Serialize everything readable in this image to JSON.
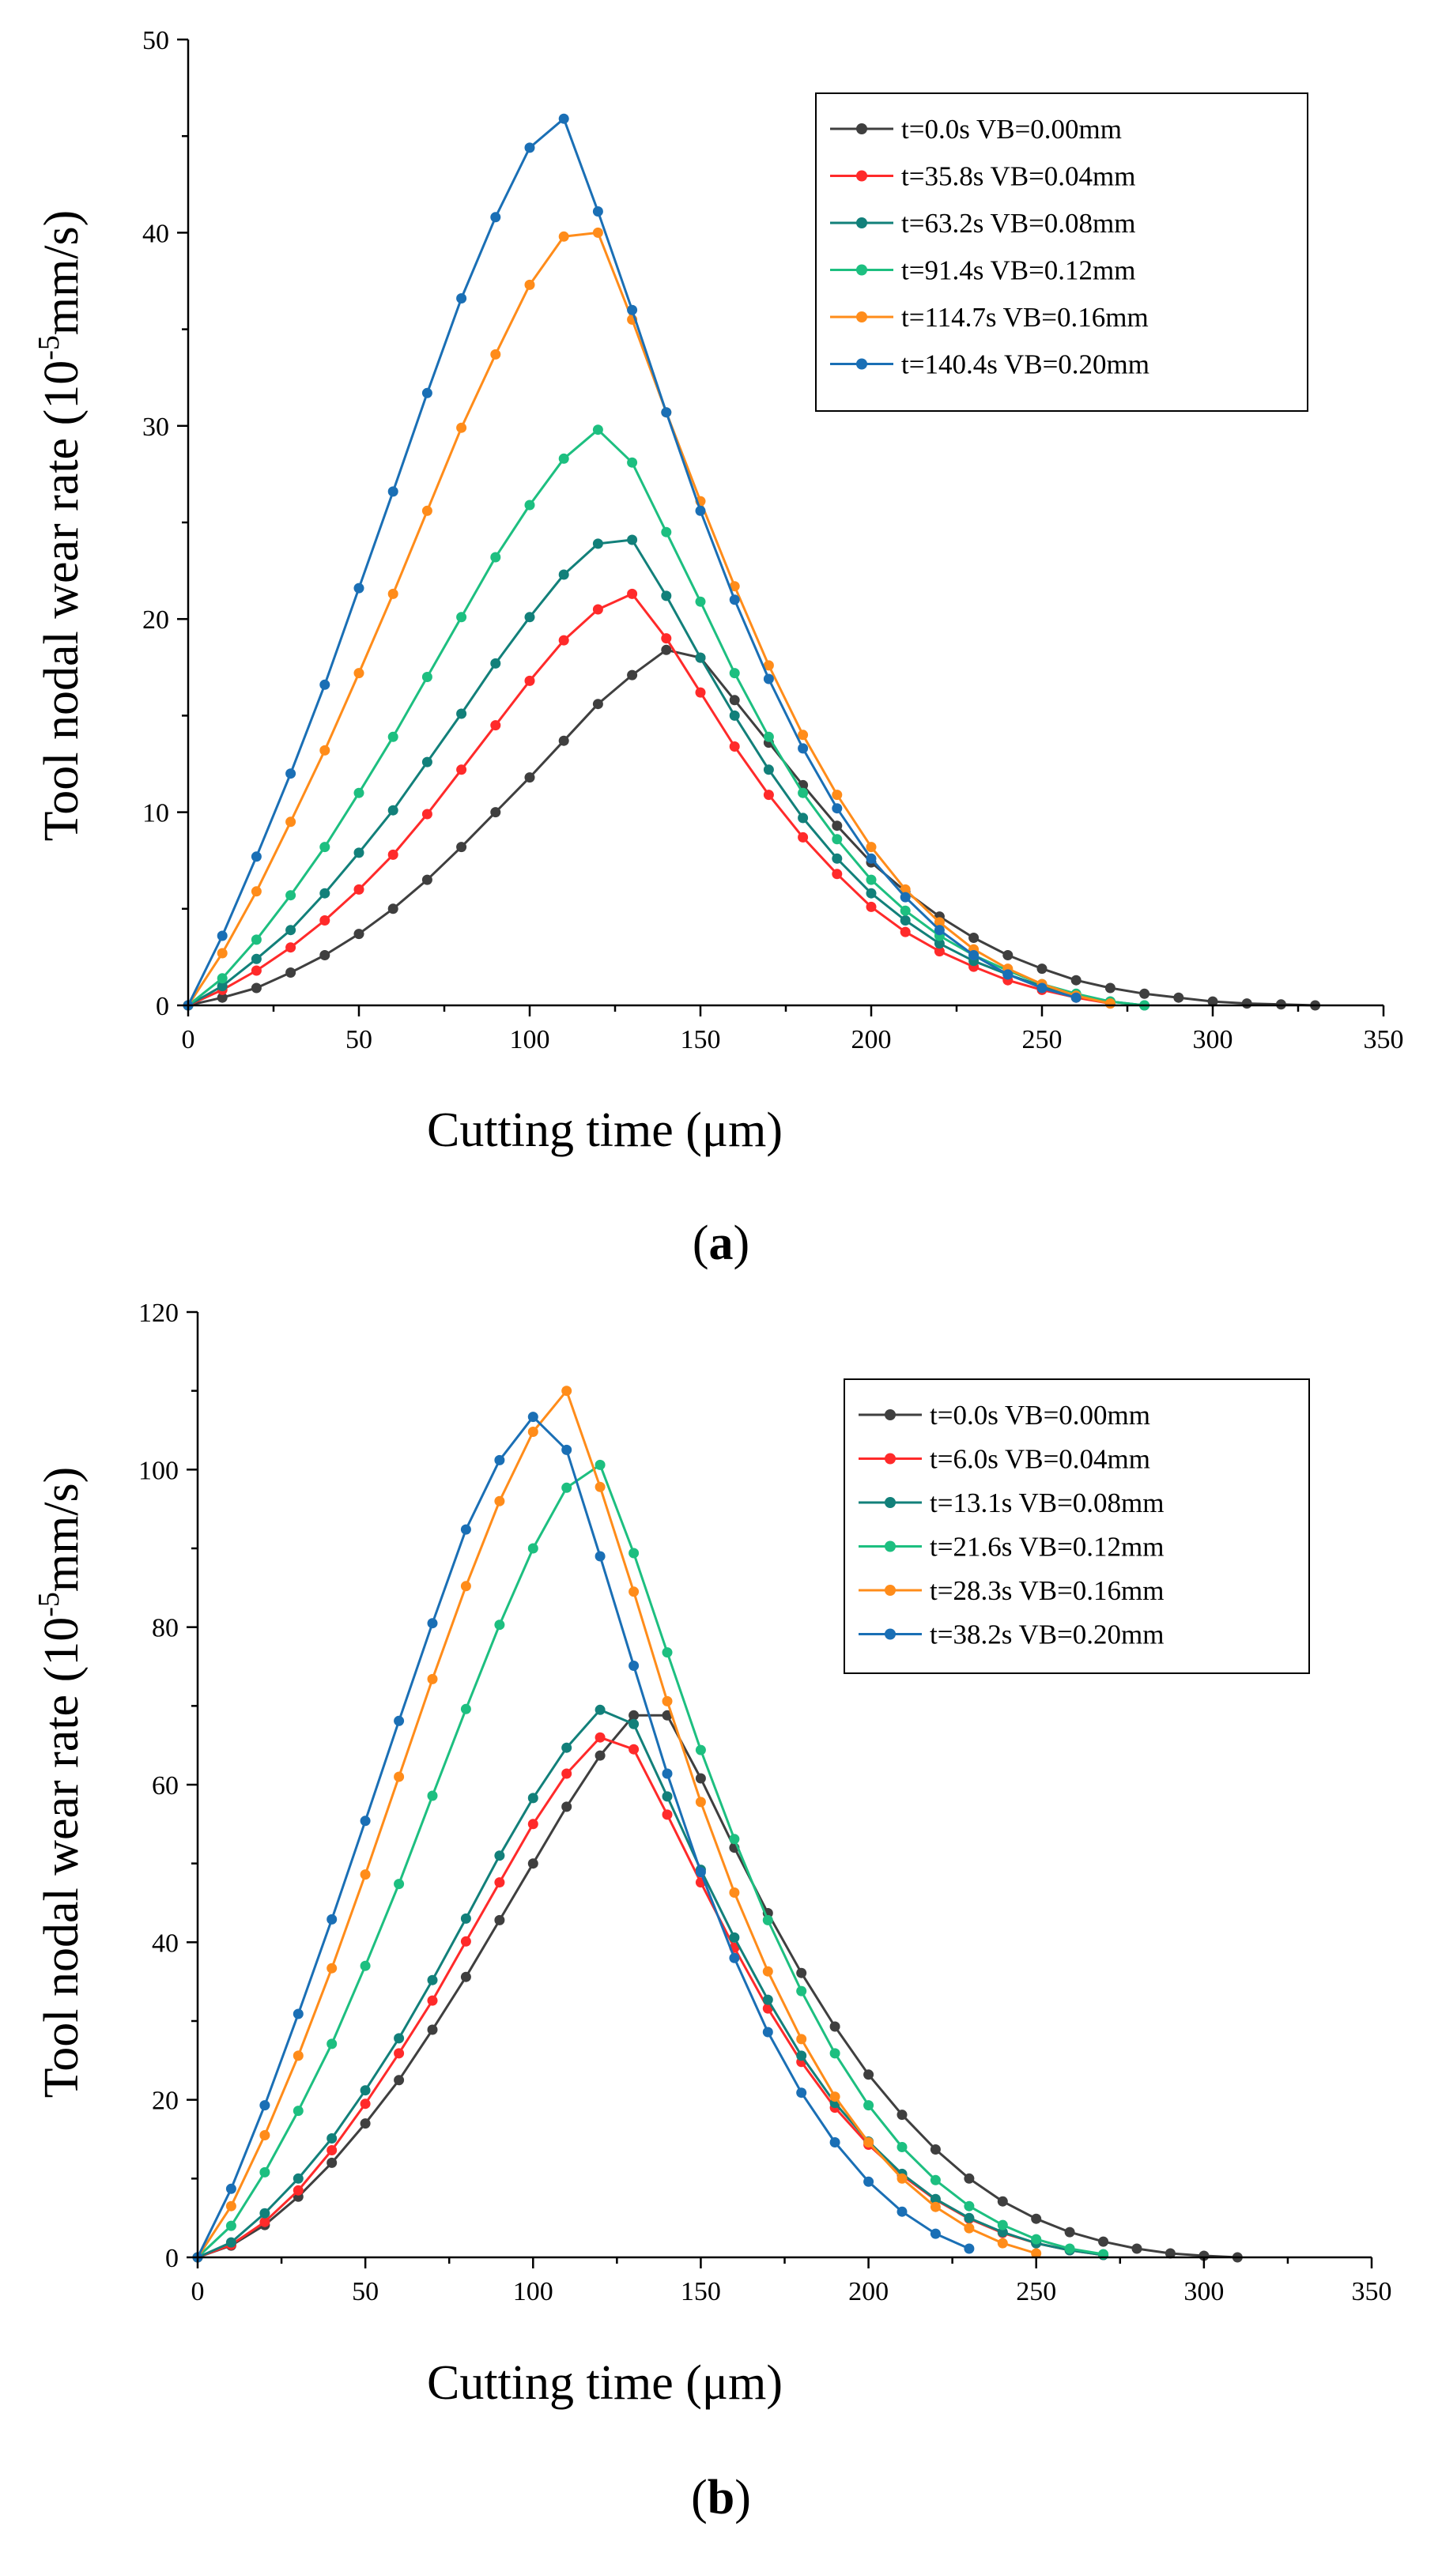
{
  "chart_data": [
    {
      "type": "line",
      "panel_label": "a",
      "title": "",
      "xlabel": "Cutting time (μm)",
      "ylabel_parts": [
        "Tool nodal wear rate (10",
        "-5",
        "mm/s)"
      ],
      "xlim": [
        0,
        350
      ],
      "ylim": [
        0,
        50
      ],
      "xticks": [
        0,
        50,
        100,
        150,
        200,
        250,
        300,
        350
      ],
      "yticks": [
        0,
        10,
        20,
        30,
        40,
        50
      ],
      "grid": false,
      "legend_position": "top-right",
      "series": [
        {
          "name": "t=0.0s VB=0.00mm",
          "color": "#3f3f3f",
          "x": [
            0,
            10,
            20,
            30,
            40,
            50,
            60,
            70,
            80,
            90,
            100,
            110,
            120,
            130,
            140,
            150,
            160,
            170,
            180,
            190,
            200,
            210,
            220,
            230,
            240,
            250,
            260,
            270,
            280,
            290,
            300,
            310,
            320,
            330
          ],
          "y": [
            0,
            0.4,
            0.9,
            1.7,
            2.6,
            3.7,
            5.0,
            6.5,
            8.2,
            10.0,
            11.8,
            13.7,
            15.6,
            17.1,
            18.4,
            18.0,
            15.8,
            13.6,
            11.4,
            9.3,
            7.4,
            5.9,
            4.6,
            3.5,
            2.6,
            1.9,
            1.3,
            0.9,
            0.6,
            0.4,
            0.2,
            0.1,
            0.05,
            0
          ]
        },
        {
          "name": "t=35.8s VB=0.04mm",
          "color": "#ff2a2a",
          "x": [
            0,
            10,
            20,
            30,
            40,
            50,
            60,
            70,
            80,
            90,
            100,
            110,
            120,
            130,
            140,
            150,
            160,
            170,
            180,
            190,
            200,
            210,
            220,
            230,
            240,
            250,
            260,
            270
          ],
          "y": [
            0,
            0.8,
            1.8,
            3.0,
            4.4,
            6.0,
            7.8,
            9.9,
            12.2,
            14.5,
            16.8,
            18.9,
            20.5,
            21.3,
            19.0,
            16.2,
            13.4,
            10.9,
            8.7,
            6.8,
            5.1,
            3.8,
            2.8,
            2.0,
            1.3,
            0.8,
            0.4,
            0.1
          ]
        },
        {
          "name": "t=63.2s VB=0.08mm",
          "color": "#12807a",
          "x": [
            0,
            10,
            20,
            30,
            40,
            50,
            60,
            70,
            80,
            90,
            100,
            110,
            120,
            130,
            140,
            150,
            160,
            170,
            180,
            190,
            200,
            210,
            220,
            230,
            240,
            250,
            260,
            270,
            280
          ],
          "y": [
            0,
            1.0,
            2.4,
            3.9,
            5.8,
            7.9,
            10.1,
            12.6,
            15.1,
            17.7,
            20.1,
            22.3,
            23.9,
            24.1,
            21.2,
            18.0,
            15.0,
            12.2,
            9.7,
            7.6,
            5.8,
            4.4,
            3.2,
            2.3,
            1.6,
            1.0,
            0.5,
            0.2,
            0
          ]
        },
        {
          "name": "t=91.4s VB=0.12mm",
          "color": "#1dbf80",
          "x": [
            0,
            10,
            20,
            30,
            40,
            50,
            60,
            70,
            80,
            90,
            100,
            110,
            120,
            130,
            140,
            150,
            160,
            170,
            180,
            190,
            200,
            210,
            220,
            230,
            240,
            250,
            260,
            270,
            280
          ],
          "y": [
            0,
            1.4,
            3.4,
            5.7,
            8.2,
            11.0,
            13.9,
            17.0,
            20.1,
            23.2,
            25.9,
            28.3,
            29.8,
            28.1,
            24.5,
            20.9,
            17.2,
            13.9,
            11.0,
            8.6,
            6.5,
            4.9,
            3.6,
            2.6,
            1.8,
            1.1,
            0.6,
            0.2,
            0
          ]
        },
        {
          "name": "t=114.7s VB=0.16mm",
          "color": "#ff8c1a",
          "x": [
            0,
            10,
            20,
            30,
            40,
            50,
            60,
            70,
            80,
            90,
            100,
            110,
            120,
            130,
            140,
            150,
            160,
            170,
            180,
            190,
            200,
            210,
            220,
            230,
            240,
            250,
            260,
            270
          ],
          "y": [
            0,
            2.7,
            5.9,
            9.5,
            13.2,
            17.2,
            21.3,
            25.6,
            29.9,
            33.7,
            37.3,
            39.8,
            40.0,
            35.5,
            30.7,
            26.1,
            21.7,
            17.6,
            14.0,
            10.9,
            8.2,
            6.0,
            4.3,
            2.9,
            1.9,
            1.1,
            0.5,
            0.1
          ]
        },
        {
          "name": "t=140.4s VB=0.20mm",
          "color": "#1a6fb5",
          "x": [
            0,
            10,
            20,
            30,
            40,
            50,
            60,
            70,
            80,
            90,
            100,
            110,
            120,
            130,
            140,
            150,
            160,
            170,
            180,
            190,
            200,
            210,
            220,
            230,
            240,
            250,
            260
          ],
          "y": [
            0,
            3.6,
            7.7,
            12.0,
            16.6,
            21.6,
            26.6,
            31.7,
            36.6,
            40.8,
            44.4,
            45.9,
            41.1,
            36.0,
            30.7,
            25.6,
            21.0,
            16.9,
            13.3,
            10.2,
            7.6,
            5.6,
            3.9,
            2.6,
            1.6,
            0.9,
            0.4
          ]
        }
      ]
    },
    {
      "type": "line",
      "panel_label": "b",
      "title": "",
      "xlabel": "Cutting time (μm)",
      "ylabel_parts": [
        "Tool nodal wear rate (10",
        "-5",
        "mm/s)"
      ],
      "xlim": [
        0,
        350
      ],
      "ylim": [
        0,
        120
      ],
      "xticks": [
        0,
        50,
        100,
        150,
        200,
        250,
        300,
        350
      ],
      "yticks": [
        0,
        20,
        40,
        60,
        80,
        100,
        120
      ],
      "grid": false,
      "legend_position": "top-right",
      "series": [
        {
          "name": "t=0.0s VB=0.00mm",
          "color": "#3f3f3f",
          "x": [
            0,
            10,
            20,
            30,
            40,
            50,
            60,
            70,
            80,
            90,
            100,
            110,
            120,
            130,
            140,
            150,
            160,
            170,
            180,
            190,
            200,
            210,
            220,
            230,
            240,
            250,
            260,
            270,
            280,
            290,
            300,
            310
          ],
          "y": [
            0,
            1.5,
            4.1,
            7.7,
            12.0,
            17.0,
            22.5,
            28.9,
            35.6,
            42.8,
            50.0,
            57.2,
            63.7,
            68.8,
            68.8,
            60.8,
            52.0,
            43.7,
            36.1,
            29.3,
            23.2,
            18.1,
            13.7,
            10.0,
            7.1,
            4.9,
            3.2,
            2.0,
            1.1,
            0.5,
            0.2,
            0
          ]
        },
        {
          "name": "t=6.0s VB=0.04mm",
          "color": "#ff2a2a",
          "x": [
            0,
            10,
            20,
            30,
            40,
            50,
            60,
            70,
            80,
            90,
            100,
            110,
            120,
            130,
            140,
            150,
            160,
            170,
            180,
            190,
            200,
            210,
            220,
            230,
            240,
            250,
            260,
            270
          ],
          "y": [
            0,
            1.6,
            4.5,
            8.5,
            13.6,
            19.5,
            25.9,
            32.6,
            40.1,
            47.6,
            55.0,
            61.4,
            66.0,
            64.5,
            56.2,
            47.6,
            39.3,
            31.6,
            24.8,
            19.0,
            14.3,
            10.4,
            7.3,
            4.9,
            3.1,
            1.8,
            0.9,
            0.3
          ]
        },
        {
          "name": "t=13.1s VB=0.08mm",
          "color": "#12807a",
          "x": [
            0,
            10,
            20,
            30,
            40,
            50,
            60,
            70,
            80,
            90,
            100,
            110,
            120,
            130,
            140,
            150,
            160,
            170,
            180,
            190,
            200,
            210,
            220,
            230,
            240,
            250,
            260,
            270
          ],
          "y": [
            0,
            1.9,
            5.6,
            10.0,
            15.1,
            21.2,
            27.8,
            35.2,
            43.0,
            51.0,
            58.3,
            64.7,
            69.5,
            67.7,
            58.5,
            49.2,
            40.6,
            32.7,
            25.6,
            19.6,
            14.7,
            10.6,
            7.4,
            5.0,
            3.2,
            1.8,
            0.9,
            0.3
          ]
        },
        {
          "name": "t=21.6s VB=0.12mm",
          "color": "#1dbf80",
          "x": [
            0,
            10,
            20,
            30,
            40,
            50,
            60,
            70,
            80,
            90,
            100,
            110,
            120,
            130,
            140,
            150,
            160,
            170,
            180,
            190,
            200,
            210,
            220,
            230,
            240,
            250,
            260,
            270
          ],
          "y": [
            0,
            4.0,
            10.8,
            18.6,
            27.1,
            37.0,
            47.4,
            58.6,
            69.6,
            80.3,
            90.0,
            97.7,
            100.6,
            89.4,
            76.8,
            64.4,
            53.1,
            42.8,
            33.8,
            25.9,
            19.3,
            14.0,
            9.8,
            6.5,
            4.1,
            2.3,
            1.1,
            0.4
          ]
        },
        {
          "name": "t=28.3s VB=0.16mm",
          "color": "#ff8c1a",
          "x": [
            0,
            10,
            20,
            30,
            40,
            50,
            60,
            70,
            80,
            90,
            100,
            110,
            120,
            130,
            140,
            150,
            160,
            170,
            180,
            190,
            200,
            210,
            220,
            230,
            240,
            250
          ],
          "y": [
            0,
            6.5,
            15.5,
            25.6,
            36.7,
            48.6,
            61.0,
            73.4,
            85.2,
            96.0,
            104.8,
            110.0,
            97.8,
            84.5,
            70.6,
            57.8,
            46.3,
            36.3,
            27.7,
            20.4,
            14.6,
            10.0,
            6.4,
            3.7,
            1.8,
            0.5
          ]
        },
        {
          "name": "t=38.2s VB=0.20mm",
          "color": "#1a6fb5",
          "x": [
            0,
            10,
            20,
            30,
            40,
            50,
            60,
            70,
            80,
            90,
            100,
            110,
            120,
            130,
            140,
            150,
            160,
            170,
            180,
            190,
            200,
            210,
            220,
            230
          ],
          "y": [
            0,
            8.7,
            19.3,
            30.9,
            42.9,
            55.4,
            68.1,
            80.5,
            92.4,
            101.2,
            106.7,
            102.5,
            89.0,
            75.1,
            61.4,
            48.9,
            38.0,
            28.6,
            20.9,
            14.6,
            9.6,
            5.8,
            3.0,
            1.1
          ]
        }
      ]
    }
  ]
}
